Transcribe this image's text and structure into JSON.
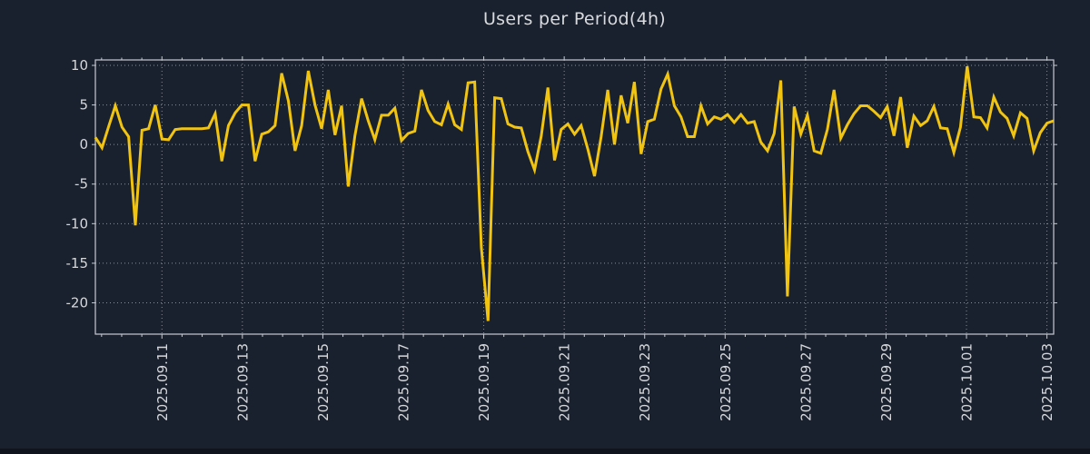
{
  "page": {
    "background": "#1a212e",
    "footer_strip": "#0f141d"
  },
  "chart_data": {
    "type": "line",
    "title": "Users per Period(4h)",
    "series_name": "Users",
    "period": "4h",
    "xlabel": "",
    "ylabel": "",
    "legend": false,
    "grid": "dotted-both-axes",
    "x_tick_labels": [
      "2025.09.11",
      "2025.09.13",
      "2025.09.15",
      "2025.09.17",
      "2025.09.19",
      "2025.09.21",
      "2025.09.23",
      "2025.09.25",
      "2025.09.27",
      "2025.09.29",
      "2025.10.01",
      "2025.10.03"
    ],
    "y_ticks": [
      10,
      5,
      0,
      -5,
      -10,
      -15,
      -20
    ],
    "ylim": [
      -23.96,
      10.69
    ],
    "x_axis": {
      "first_tick_index": 10,
      "tick_step_points": 12.09,
      "minor_ticks_per_interval": 3,
      "points_per_day": 6
    },
    "values": [
      0.9,
      -0.4,
      2.3,
      4.9,
      2.2,
      1.0,
      -10.2,
      1.8,
      2.0,
      5.0,
      0.7,
      0.6,
      1.9,
      2.0,
      2.0,
      2.0,
      2.0,
      2.1,
      3.9,
      -2.1,
      2.4,
      4.0,
      5.0,
      5.0,
      -2.1,
      1.3,
      1.6,
      2.4,
      9.0,
      5.5,
      -0.8,
      2.4,
      9.3,
      5.0,
      2.0,
      6.9,
      1.2,
      4.9,
      -5.3,
      1.1,
      5.8,
      3.0,
      0.6,
      3.7,
      3.7,
      4.6,
      0.5,
      1.4,
      1.7,
      6.9,
      4.3,
      2.9,
      2.5,
      5.1,
      2.5,
      1.9,
      7.8,
      7.9,
      -13.0,
      -22.3,
      5.9,
      5.8,
      2.6,
      2.2,
      2.1,
      -0.9,
      -3.2,
      1.1,
      7.2,
      -2.0,
      1.9,
      2.6,
      1.3,
      2.4,
      -0.6,
      -4.0,
      1.0,
      6.9,
      0.0,
      6.2,
      2.7,
      7.9,
      -1.2,
      2.9,
      3.2,
      7.0,
      8.9,
      4.9,
      3.5,
      1.0,
      1.0,
      4.9,
      2.6,
      3.5,
      3.2,
      3.8,
      2.8,
      3.8,
      2.7,
      2.9,
      0.3,
      -0.8,
      1.4,
      8.1,
      -19.2,
      4.8,
      1.3,
      3.7,
      -0.8,
      -1.1,
      1.9,
      6.9,
      0.8,
      2.5,
      3.9,
      4.9,
      4.9,
      4.2,
      3.4,
      4.8,
      1.1,
      6.0,
      -0.4,
      3.6,
      2.4,
      3.0,
      4.8,
      2.1,
      2.0,
      -1.0,
      2.2,
      9.9,
      3.5,
      3.4,
      2.1,
      6.0,
      4.1,
      3.3,
      1.1,
      4.0,
      3.3,
      -0.8,
      1.5,
      2.7,
      3.0
    ],
    "colors": {
      "line": "#f0c411",
      "grid": "#878e99",
      "frame": "#c6cad1",
      "labels": "#d5d7da",
      "title": "#d8dadd"
    }
  }
}
